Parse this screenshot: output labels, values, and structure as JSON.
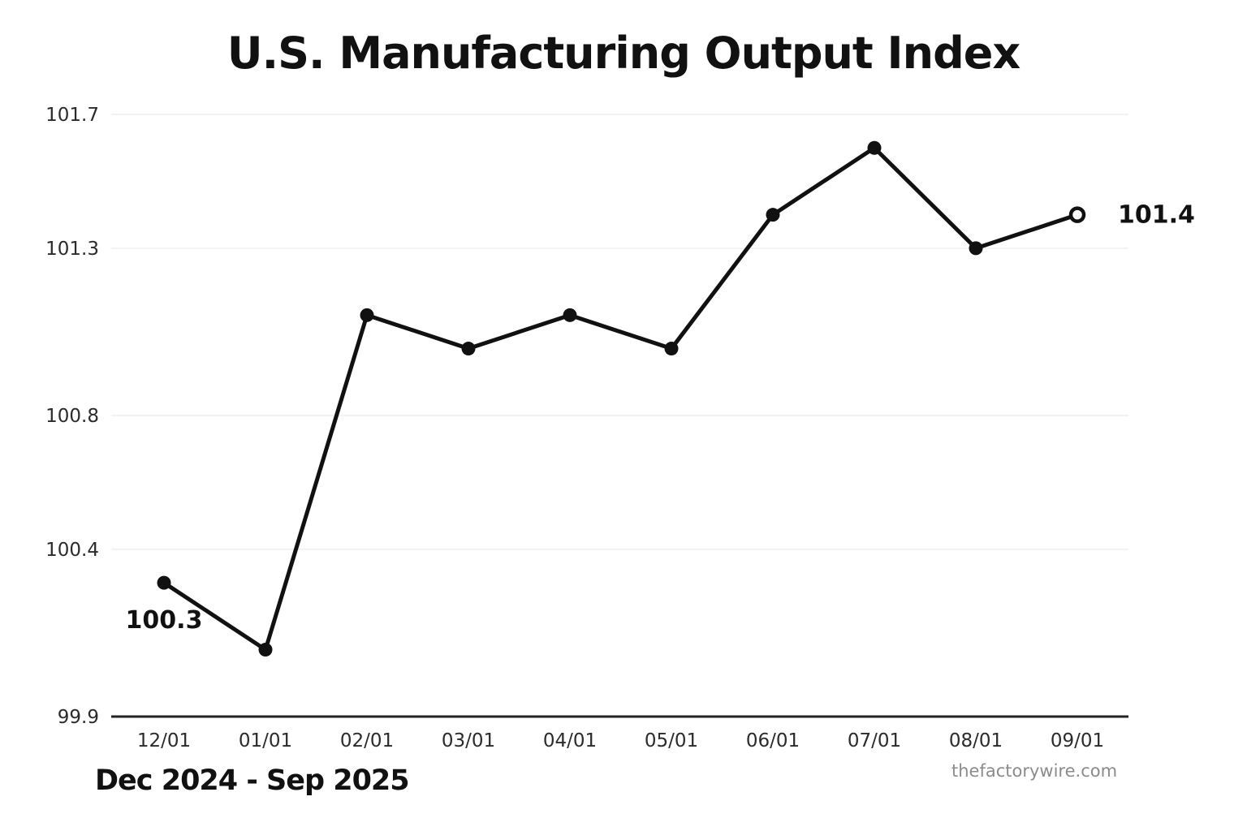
{
  "page": {
    "title": "U.S. Manufacturing Output Index",
    "subtitle": "Dec 2024 - Sep 2025",
    "watermark": "thefactorywire.com"
  },
  "colors": {
    "background": "#ffffff",
    "line": "#111111",
    "marker_fill": "#111111",
    "open_marker_fill": "#ffffff",
    "grid": "#f2f2f2",
    "axis": "#222222",
    "tick_text": "#2b2b2b",
    "annotation_text": "#111111",
    "watermark_text": "#8b8b8b"
  },
  "chart_data": {
    "type": "line",
    "title": "U.S. Manufacturing Output Index",
    "xlabel": "",
    "ylabel": "",
    "categories": [
      "12/01",
      "01/01",
      "02/01",
      "03/01",
      "04/01",
      "05/01",
      "06/01",
      "07/01",
      "08/01",
      "09/01"
    ],
    "series": [
      {
        "name": "Manufacturing Output Index",
        "values": [
          100.3,
          100.1,
          101.1,
          101.0,
          101.1,
          101.0,
          101.4,
          101.6,
          101.3,
          101.4
        ]
      }
    ],
    "y_ticks": [
      101.7,
      101.3,
      100.8,
      100.4,
      99.9
    ],
    "ylim": [
      99.9,
      101.7
    ],
    "grid": true,
    "legend_position": "none",
    "period_note": "Dec 2024 - Sep 2025",
    "annotations": [
      {
        "index": 0,
        "text": "100.3",
        "position": "below"
      },
      {
        "index": 9,
        "text": "101.4",
        "position": "right"
      }
    ],
    "last_point_open": true
  }
}
